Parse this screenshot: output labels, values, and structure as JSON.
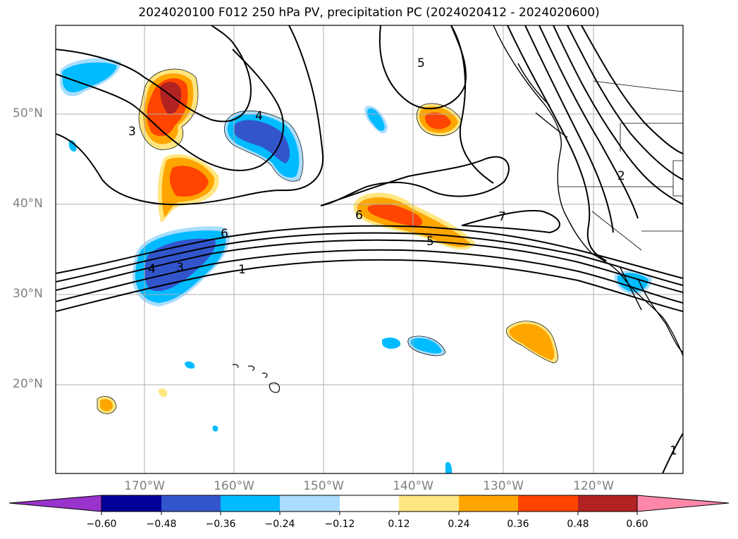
{
  "title": "2024020100 F012 250 hPa PV, precipitation PC (2024020412 - 2024020600)",
  "lat_labels": [
    "50°N",
    "40°N",
    "30°N",
    "20°N"
  ],
  "lon_labels": [
    "170°W",
    "160°W",
    "150°W",
    "140°W",
    "130°W",
    "120°W"
  ],
  "colorbar": {
    "ticks": [
      "−0.60",
      "−0.48",
      "−0.36",
      "−0.24",
      "−0.12",
      "0.12",
      "0.24",
      "0.36",
      "0.48",
      "0.60"
    ],
    "colors": [
      "#9933cc",
      "#000099",
      "#3355cc",
      "#00bbff",
      "#aaddff",
      "#ffffff",
      "#ffe680",
      "#ffa500",
      "#ff4500",
      "#b22222",
      "#ff88aa"
    ]
  },
  "contour_labels": [
    "6",
    "5",
    "4",
    "3",
    "1",
    "7",
    "6",
    "5",
    "4",
    "3",
    "2",
    "1"
  ]
}
